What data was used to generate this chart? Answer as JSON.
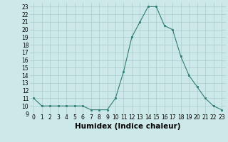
{
  "x": [
    0,
    1,
    2,
    3,
    4,
    5,
    6,
    7,
    8,
    9,
    10,
    11,
    12,
    13,
    14,
    15,
    16,
    17,
    18,
    19,
    20,
    21,
    22,
    23
  ],
  "y": [
    11,
    10,
    10,
    10,
    10,
    10,
    10,
    9.5,
    9.5,
    9.5,
    11,
    14.5,
    19,
    21,
    23,
    23,
    20.5,
    20,
    16.5,
    14,
    12.5,
    11,
    10,
    9.5
  ],
  "line_color": "#2e7d6e",
  "marker": "s",
  "marker_size": 2.0,
  "bg_color": "#cce8e8",
  "grid_color": "#aacccc",
  "xlabel": "Humidex (Indice chaleur)",
  "xlim": [
    -0.5,
    23.5
  ],
  "ylim": [
    9,
    23.5
  ],
  "yticks": [
    9,
    10,
    11,
    12,
    13,
    14,
    15,
    16,
    17,
    18,
    19,
    20,
    21,
    22,
    23
  ],
  "xticks": [
    0,
    1,
    2,
    3,
    4,
    5,
    6,
    7,
    8,
    9,
    10,
    11,
    12,
    13,
    14,
    15,
    16,
    17,
    18,
    19,
    20,
    21,
    22,
    23
  ],
  "tick_label_size": 5.5,
  "xlabel_size": 7.5,
  "linewidth": 0.8
}
